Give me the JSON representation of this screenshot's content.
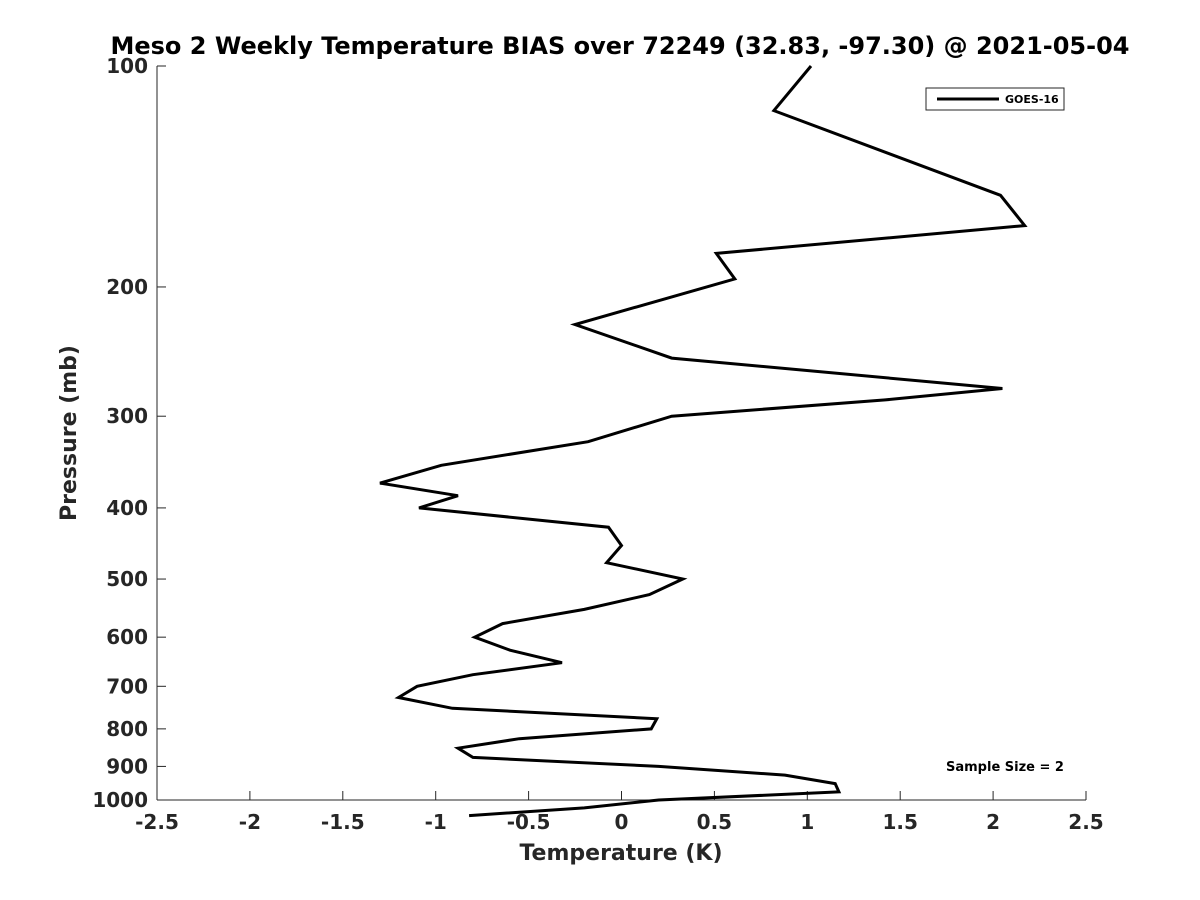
{
  "chart_data": {
    "type": "line",
    "title": "Meso 2 Weekly Temperature BIAS over 72249 (32.83, -97.30) @ 2021-05-04",
    "xlabel": "Temperature (K)",
    "ylabel": "Pressure (mb)",
    "xlim": [
      -2.5,
      2.5
    ],
    "ylim": [
      1000,
      100
    ],
    "y_scale": "log",
    "x_ticks": [
      -2.5,
      -2,
      -1.5,
      -1,
      -0.5,
      0,
      0.5,
      1,
      1.5,
      2,
      2.5
    ],
    "x_tick_labels": [
      "-2.5",
      "-2",
      "-1.5",
      "-1",
      "-0.5",
      "0",
      "0.5",
      "1",
      "1.5",
      "2",
      "2.5"
    ],
    "y_ticks": [
      100,
      200,
      300,
      400,
      500,
      600,
      700,
      800,
      900,
      1000
    ],
    "y_tick_labels": [
      "100",
      "200",
      "300",
      "400",
      "500",
      "600",
      "700",
      "800",
      "900",
      "1000"
    ],
    "grid": false,
    "legend_position": "top-right",
    "annotation": "Sample Size = 2",
    "series": [
      {
        "name": "GOES-16",
        "color": "#000000",
        "points": [
          {
            "p": 100,
            "t": 1.02
          },
          {
            "p": 115,
            "t": 0.82
          },
          {
            "p": 150,
            "t": 2.04
          },
          {
            "p": 165,
            "t": 2.17
          },
          {
            "p": 180,
            "t": 0.51
          },
          {
            "p": 195,
            "t": 0.61
          },
          {
            "p": 225,
            "t": -0.25
          },
          {
            "p": 250,
            "t": 0.27
          },
          {
            "p": 275,
            "t": 2.05
          },
          {
            "p": 285,
            "t": 1.42
          },
          {
            "p": 300,
            "t": 0.27
          },
          {
            "p": 325,
            "t": -0.18
          },
          {
            "p": 350,
            "t": -0.97
          },
          {
            "p": 370,
            "t": -1.3
          },
          {
            "p": 385,
            "t": -0.88
          },
          {
            "p": 400,
            "t": -1.09
          },
          {
            "p": 425,
            "t": -0.07
          },
          {
            "p": 450,
            "t": 0.0
          },
          {
            "p": 475,
            "t": -0.08
          },
          {
            "p": 500,
            "t": 0.33
          },
          {
            "p": 525,
            "t": 0.15
          },
          {
            "p": 550,
            "t": -0.2
          },
          {
            "p": 575,
            "t": -0.64
          },
          {
            "p": 600,
            "t": -0.79
          },
          {
            "p": 625,
            "t": -0.6
          },
          {
            "p": 650,
            "t": -0.32
          },
          {
            "p": 675,
            "t": -0.8
          },
          {
            "p": 700,
            "t": -1.1
          },
          {
            "p": 725,
            "t": -1.2
          },
          {
            "p": 750,
            "t": -0.91
          },
          {
            "p": 775,
            "t": 0.19
          },
          {
            "p": 800,
            "t": 0.16
          },
          {
            "p": 825,
            "t": -0.55
          },
          {
            "p": 850,
            "t": -0.88
          },
          {
            "p": 875,
            "t": -0.8
          },
          {
            "p": 900,
            "t": 0.2
          },
          {
            "p": 925,
            "t": 0.88
          },
          {
            "p": 950,
            "t": 1.15
          },
          {
            "p": 975,
            "t": 1.17
          },
          {
            "p": 1000,
            "t": 0.2
          },
          {
            "p": 1025,
            "t": -0.2
          },
          {
            "p": 1050,
            "t": -0.82
          }
        ]
      }
    ]
  }
}
